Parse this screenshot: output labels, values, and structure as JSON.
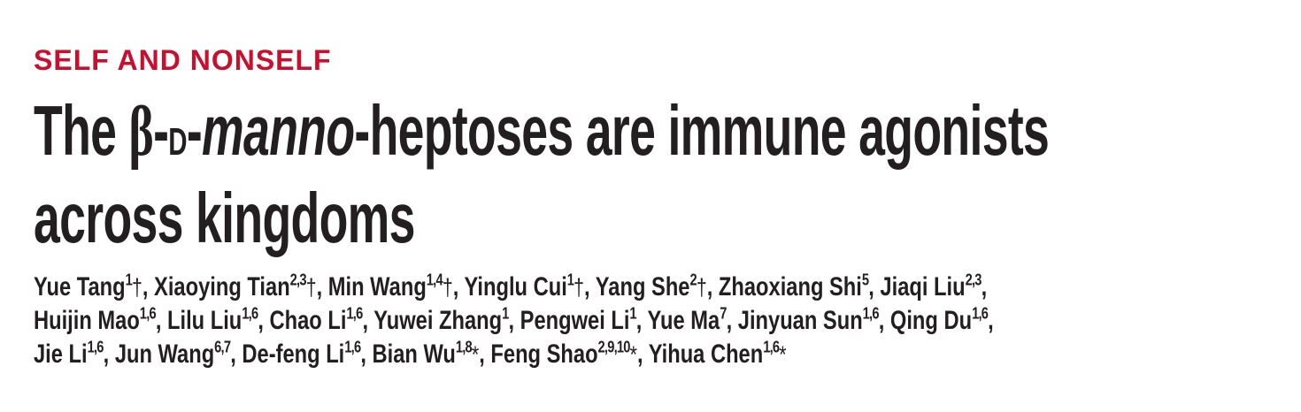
{
  "kicker": "SELF AND NONSELF",
  "title": {
    "line1": {
      "pre": "The ",
      "beta": "β",
      "dash1": "-",
      "d": "d",
      "dash2": "-",
      "italic": "manno",
      "post": "-heptoses are immune agonists"
    },
    "line2": "across kingdoms"
  },
  "authors": [
    [
      {
        "name": "Yue Tang",
        "sup": "1",
        "mark": "†"
      },
      {
        "name": "Xiaoying Tian",
        "sup": "2,3",
        "mark": "†"
      },
      {
        "name": "Min Wang",
        "sup": "1,4",
        "mark": "†"
      },
      {
        "name": "Yinglu Cui",
        "sup": "1",
        "mark": "†"
      },
      {
        "name": "Yang She",
        "sup": "2",
        "mark": "†"
      },
      {
        "name": "Zhaoxiang Shi",
        "sup": "5",
        "mark": ""
      },
      {
        "name": "Jiaqi Liu",
        "sup": "2,3",
        "mark": ""
      }
    ],
    [
      {
        "name": "Huijin Mao",
        "sup": "1,6",
        "mark": ""
      },
      {
        "name": "Lilu Liu",
        "sup": "1,6",
        "mark": ""
      },
      {
        "name": "Chao Li",
        "sup": "1,6",
        "mark": ""
      },
      {
        "name": "Yuwei Zhang",
        "sup": "1",
        "mark": ""
      },
      {
        "name": "Pengwei Li",
        "sup": "1",
        "mark": ""
      },
      {
        "name": "Yue Ma",
        "sup": "7",
        "mark": ""
      },
      {
        "name": "Jinyuan Sun",
        "sup": "1,6",
        "mark": ""
      },
      {
        "name": "Qing Du",
        "sup": "1,6",
        "mark": ""
      }
    ],
    [
      {
        "name": "Jie Li",
        "sup": "1,6",
        "mark": ""
      },
      {
        "name": "Jun Wang",
        "sup": "6,7",
        "mark": ""
      },
      {
        "name": "De-feng Li",
        "sup": "1,6",
        "mark": ""
      },
      {
        "name": "Bian Wu",
        "sup": "1,8",
        "mark": "*"
      },
      {
        "name": "Feng Shao",
        "sup": "2,9,10",
        "mark": "*"
      },
      {
        "name": "Yihua Chen",
        "sup": "1,6",
        "mark": "*"
      }
    ]
  ],
  "colors": {
    "kicker": "#c8102e",
    "text": "#231f20"
  }
}
